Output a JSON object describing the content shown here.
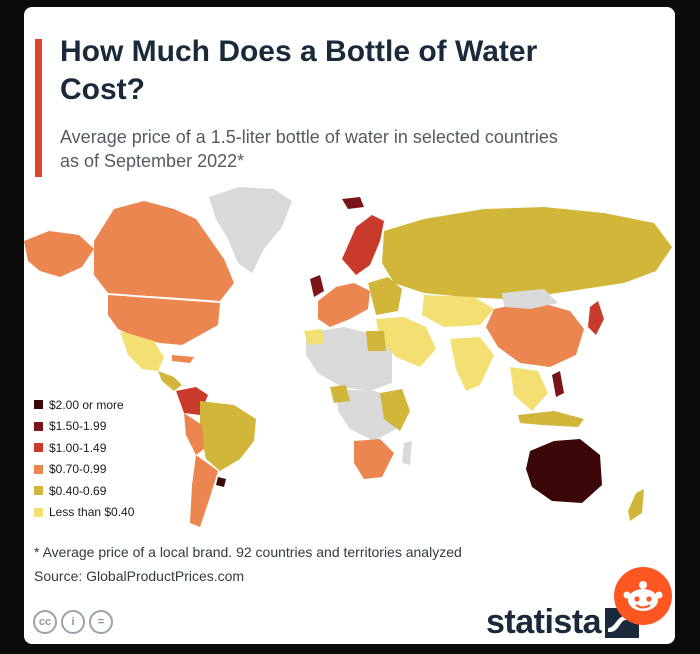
{
  "header": {
    "title": "How Much Does a Bottle of Water Cost?",
    "subtitle": "Average price of a 1.5-liter bottle of water in selected countries as of September 2022*"
  },
  "legend": {
    "items": [
      {
        "label": "$2.00 or more",
        "color": "#3b0708"
      },
      {
        "label": "$1.50-1.99",
        "color": "#7a1418"
      },
      {
        "label": "$1.00-1.49",
        "color": "#c83a2a"
      },
      {
        "label": "$0.70-0.99",
        "color": "#ec8650"
      },
      {
        "label": "$0.40-0.69",
        "color": "#d2b63a"
      },
      {
        "label": "Less than $0.40",
        "color": "#f3df72"
      }
    ]
  },
  "colors": {
    "no_data": "#d9d9d9",
    "accent": "#e0442b",
    "title_text": "#1b2a3a"
  },
  "footer": {
    "footnote": "* Average price of a local brand. 92 countries and territories analyzed",
    "source": "Source: GlobalProductPrices.com",
    "brand": "statista",
    "license_icons": [
      "cc-icon",
      "attribution-icon",
      "no-derivatives-icon"
    ],
    "license_glyphs": [
      "cc",
      "i",
      "="
    ]
  }
}
